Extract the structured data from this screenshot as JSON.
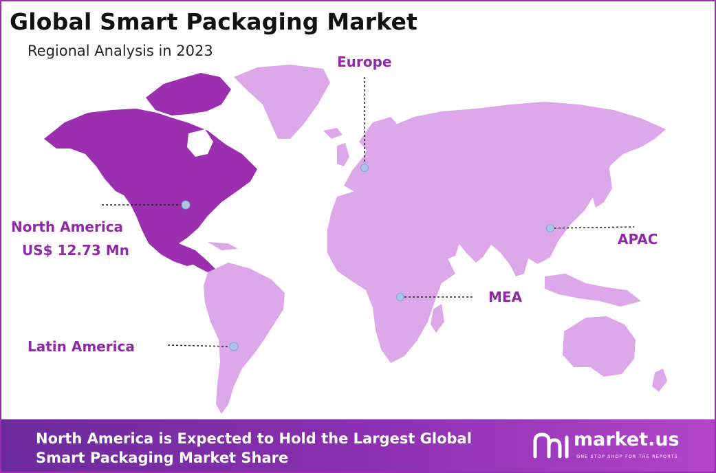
{
  "title": "Global Smart Packaging Market",
  "subtitle": "Regional Analysis in 2023",
  "regions": {
    "europe": "Europe",
    "north_america": "North America",
    "north_america_value": "US$ 12.73 Mn",
    "apac": "APAC",
    "mea": "MEA",
    "latin_america": "Latin America"
  },
  "footer": {
    "line1": "North America is Expected to Hold the Largest Global",
    "line2": "Smart Packaging Market Share"
  },
  "logo": {
    "name": "market.us",
    "tagline": "ONE STOP SHOP FOR THE REPORTS"
  },
  "colors": {
    "highlight_region": "#9b2fb0",
    "other_regions": "#dca8ea",
    "label": "#8e2aa3",
    "marker": "#a9c6e8",
    "footer_start": "#6c2b9b",
    "footer_end": "#b145c9"
  }
}
